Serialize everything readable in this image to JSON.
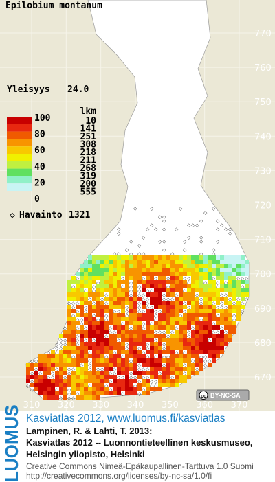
{
  "title": "Epilobium montanum",
  "frequency": {
    "label": "Yleisyys",
    "value": {
      "value": 24.0,
      "label": "24.0"
    }
  },
  "legend": {
    "scale_labels": [
      100,
      80,
      60,
      40,
      20,
      0
    ],
    "count_header": "lkm",
    "counts": [
      10,
      141,
      251,
      308,
      218,
      211,
      268,
      319,
      200,
      555
    ],
    "colors": [
      "#c80000",
      "#e82810",
      "#f05a00",
      "#f89400",
      "#f8c800",
      "#f0f000",
      "#c0f040",
      "#60e060",
      "#90f0c8",
      "#c8f4f4"
    ]
  },
  "observations": {
    "label": "Havainto",
    "value": 1321
  },
  "map": {
    "y_labels": [
      770,
      760,
      750,
      740,
      730,
      720,
      710,
      700,
      690,
      680,
      670
    ],
    "x_labels": [
      310,
      320,
      330,
      340,
      350,
      360,
      370
    ]
  },
  "license_badge": "BY-NC-SA",
  "footer": {
    "logo": "LUOMUS",
    "link": "Kasviatlas 2012, www.luomus.fi/kasviatlas",
    "citation": [
      "Lampinen, R. & Lahti, T. 2013:",
      "Kasviatlas 2012 -- Luonnontieteellinen keskusmuseo,",
      "Helsingin yliopisto, Helsinki"
    ],
    "license": [
      "Creative Commons Nimeä-Epäkaupallinen-Tarttuva 1.0 Suomi",
      "http://creativecommons.org/licenses/by-nc-sa/1.0/fi"
    ]
  }
}
